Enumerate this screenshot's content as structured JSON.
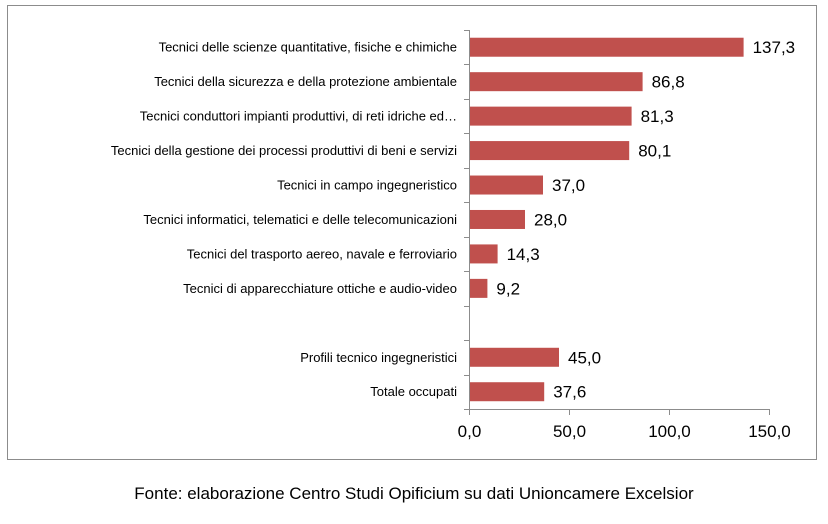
{
  "chart_data": {
    "type": "bar",
    "orientation": "horizontal",
    "categories": [
      "Tecnici delle scienze quantitative, fisiche e chimiche",
      "Tecnici della sicurezza e della protezione ambientale",
      "Tecnici conduttori impianti produttivi, di reti idriche ed…",
      "Tecnici della gestione dei processi produttivi di beni e servizi",
      "Tecnici in campo ingegneristico",
      "Tecnici informatici, telematici e delle telecomunicazioni",
      "Tecnici del trasporto aereo, navale e ferroviario",
      "Tecnici di apparecchiature ottiche e audio-video",
      "",
      "Profili tecnico ingegneristici",
      "Totale occupati"
    ],
    "values": [
      137.3,
      86.8,
      81.3,
      80.1,
      37.0,
      28.0,
      14.3,
      9.2,
      null,
      45.0,
      37.6
    ],
    "value_labels": [
      "137,3",
      "86,8",
      "81,3",
      "80,1",
      "37,0",
      "28,0",
      "14,3",
      "9,2",
      "",
      "45,0",
      "37,6"
    ],
    "xlim": [
      0,
      150
    ],
    "x_ticks": [
      0,
      50,
      100,
      150
    ],
    "x_tick_labels": [
      "0,0",
      "50,0",
      "100,0",
      "150,0"
    ],
    "bar_color": "#c0504d",
    "grid": false,
    "legend": "none"
  },
  "source_note": "Fonte: elaborazione Centro Studi Opificium su dati Unioncamere Excelsior"
}
